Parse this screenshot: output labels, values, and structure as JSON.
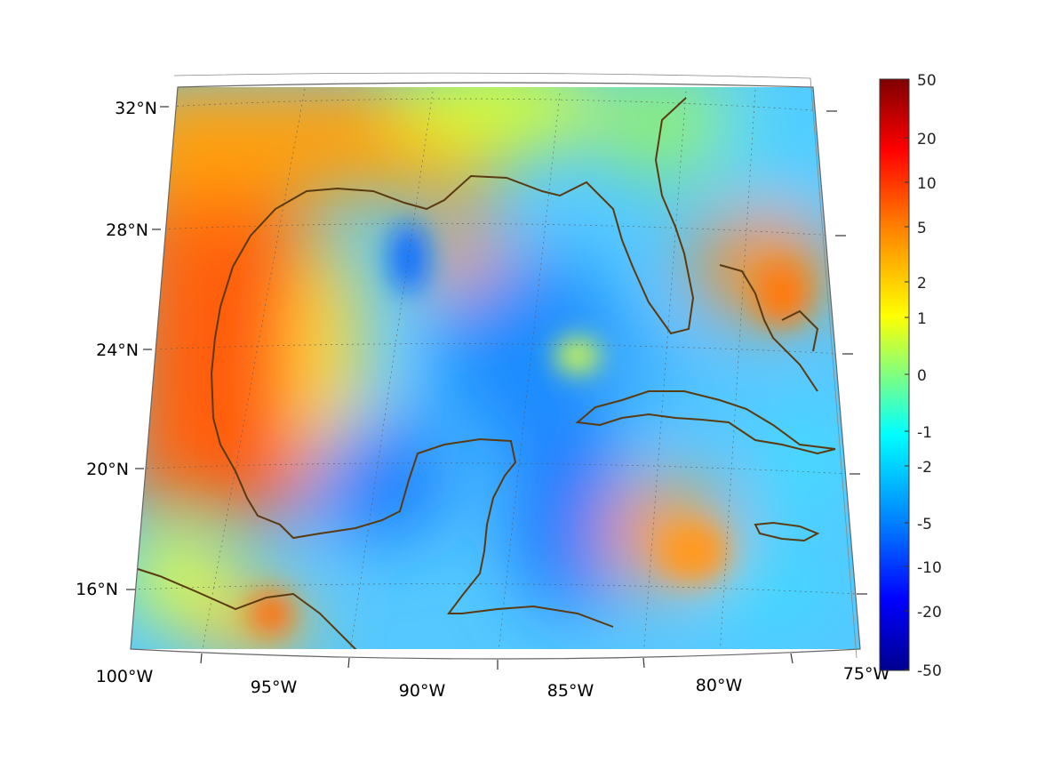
{
  "map": {
    "projection": "conic",
    "extent": {
      "lon": [
        -100,
        -75
      ],
      "lat": [
        14,
        33
      ]
    },
    "grid": true,
    "coastline_color": "#5a3a10",
    "lon_ticks": [
      {
        "value": -100,
        "label": "100°W"
      },
      {
        "value": -95,
        "label": "95°W"
      },
      {
        "value": -90,
        "label": "90°W"
      },
      {
        "value": -85,
        "label": "85°W"
      },
      {
        "value": -80,
        "label": "80°W"
      },
      {
        "value": -75,
        "label": "75°W"
      }
    ],
    "lat_ticks": [
      {
        "value": 16,
        "label": "16°N"
      },
      {
        "value": 20,
        "label": "20°N"
      },
      {
        "value": 24,
        "label": "24°N"
      },
      {
        "value": 28,
        "label": "28°N"
      },
      {
        "value": 32,
        "label": "32°N"
      }
    ]
  },
  "colorbar": {
    "colormap": "jet",
    "ticks": [
      "50",
      "20",
      "10",
      "5",
      "2",
      "1",
      "0",
      "-1",
      "-2",
      "-5",
      "-10",
      "-20",
      "-50"
    ],
    "colors": [
      "#7f0000",
      "#ff0000",
      "#ff8000",
      "#ffff00",
      "#80ff80",
      "#00ffff",
      "#0080ff",
      "#0000ff",
      "#00008f"
    ]
  }
}
